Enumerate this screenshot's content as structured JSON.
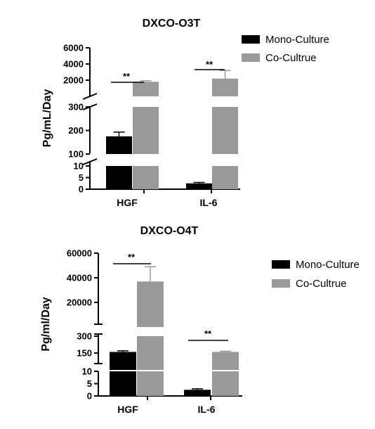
{
  "chart_data": [
    {
      "type": "bar",
      "title": "DXCO-O3T",
      "ylabel": "Pg/mL/Day",
      "xlabel": "",
      "categories": [
        "HGF",
        "IL-6"
      ],
      "y_axis_scale": "broken (segmented) linear axis",
      "y_segments": [
        {
          "range": [
            0,
            10
          ],
          "ticks": [
            "0",
            "5",
            "10"
          ]
        },
        {
          "range": [
            100,
            300
          ],
          "ticks": [
            "100",
            "200",
            "300"
          ]
        },
        {
          "range": [
            0,
            6000
          ],
          "ticks": [
            "2000",
            "4000",
            "6000"
          ]
        }
      ],
      "series": [
        {
          "name": "Mono-Culture",
          "color": "#000000",
          "values": [
            175,
            2.5
          ],
          "errors": [
            18,
            0.4
          ]
        },
        {
          "name": "Co-Cultrue",
          "color": "#999999",
          "values": [
            1800,
            2200
          ],
          "errors": [
            120,
            1000
          ]
        }
      ],
      "annotations": [
        {
          "text": "**",
          "category": "HGF"
        },
        {
          "text": "**",
          "category": "IL-6"
        }
      ],
      "legend": {
        "position": "top-right"
      }
    },
    {
      "type": "bar",
      "title": "DXCO-O4T",
      "ylabel": "Pg/ml/Day",
      "xlabel": "",
      "categories": [
        "HGF",
        "IL-6"
      ],
      "y_axis_scale": "broken (segmented) linear axis",
      "y_segments": [
        {
          "range": [
            0,
            10
          ],
          "ticks": [
            "0",
            "5",
            "10"
          ]
        },
        {
          "range": [
            0,
            300
          ],
          "ticks": [
            "150",
            "300"
          ]
        },
        {
          "range": [
            0,
            60000
          ],
          "ticks": [
            "20000",
            "40000",
            "60000"
          ]
        }
      ],
      "series": [
        {
          "name": "Mono-Culture",
          "color": "#000000",
          "values": [
            160,
            2.5
          ],
          "errors": [
            10,
            0.4
          ]
        },
        {
          "name": "Co-Cultrue",
          "color": "#999999",
          "values": [
            37000,
            160
          ],
          "errors": [
            12000,
            6
          ]
        }
      ],
      "annotations": [
        {
          "text": "**",
          "category": "HGF"
        },
        {
          "text": "**",
          "category": "IL-6"
        }
      ],
      "legend": {
        "position": "right"
      }
    }
  ]
}
